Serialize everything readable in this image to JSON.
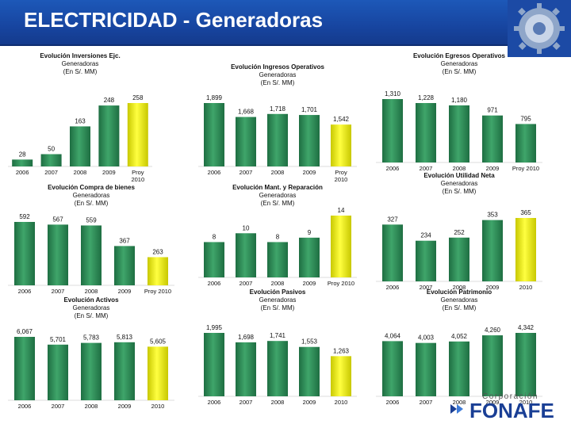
{
  "header": {
    "title": "ELECTRICIDAD - Generadoras"
  },
  "colors": {
    "bar_green": "#2e8b57",
    "bar_yellow": "#f2f200",
    "header_blue": "#1b4fb0"
  },
  "footer": {
    "corp_label": "Corporación",
    "brand": "FONAFE"
  },
  "chart_data": [
    {
      "id": "inversiones",
      "type": "bar",
      "title": "Evolución Inversiones Ejc.",
      "subtitle": "Generadoras",
      "unit": "(En S/. MM)",
      "categories": [
        "2006",
        "2007",
        "2008",
        "2009",
        "Proy\n2010"
      ],
      "values": [
        28,
        50,
        163,
        248,
        258
      ],
      "labels": [
        "28",
        "50",
        "163",
        "248",
        "258"
      ],
      "highlight": [
        false,
        false,
        false,
        false,
        true
      ]
    },
    {
      "id": "ingresos",
      "type": "bar",
      "title": "Evolución Ingresos Operativos",
      "subtitle": "Generadoras",
      "unit": "(En S/. MM)",
      "categories": [
        "2006",
        "2007",
        "2008",
        "2009",
        "Proy\n2010"
      ],
      "values": [
        1899,
        1668,
        1718,
        1701,
        1542
      ],
      "labels": [
        "1,899",
        "1,668",
        "1,718",
        "1,701",
        "1,542"
      ],
      "highlight": [
        false,
        false,
        false,
        false,
        true
      ]
    },
    {
      "id": "egresos",
      "type": "bar",
      "title": "Evolución Egresos Operativos",
      "subtitle": "Generadoras",
      "unit": "(En S/. MM)",
      "categories": [
        "2006",
        "2007",
        "2008",
        "2009",
        "Proy 2010"
      ],
      "values": [
        1310,
        1228,
        1180,
        971,
        795
      ],
      "labels": [
        "1,310",
        "1,228",
        "1,180",
        "971",
        "795"
      ],
      "highlight": [
        false,
        false,
        false,
        false,
        false
      ]
    },
    {
      "id": "compra",
      "type": "bar",
      "title": "Evolución Compra de bienes",
      "subtitle": "Generadoras",
      "unit": "(En S/. MM)",
      "categories": [
        "2006",
        "2007",
        "2008",
        "2009",
        "Proy 2010"
      ],
      "values": [
        592,
        567,
        559,
        367,
        263
      ],
      "labels": [
        "592",
        "567",
        "559",
        "367",
        "263"
      ],
      "highlight": [
        false,
        false,
        false,
        false,
        true
      ]
    },
    {
      "id": "mant",
      "type": "bar",
      "title": "Evolución Mant. y Reparación",
      "subtitle": "Generadoras",
      "unit": "(En S/. MM)",
      "categories": [
        "2006",
        "2007",
        "2008",
        "2009",
        "Proy 2010"
      ],
      "values": [
        8,
        10,
        8,
        9,
        14
      ],
      "labels": [
        "8",
        "10",
        "8",
        "9",
        "14"
      ],
      "highlight": [
        false,
        false,
        false,
        false,
        true
      ]
    },
    {
      "id": "utilidad",
      "type": "bar",
      "title": "Evolución Utilidad Neta",
      "subtitle": "Generadoras",
      "unit": "(En S/. MM)",
      "categories": [
        "2006",
        "2007",
        "2008",
        "2009",
        "2010"
      ],
      "values": [
        327,
        234,
        252,
        353,
        365
      ],
      "labels": [
        "327",
        "234",
        "252",
        "353",
        "365"
      ],
      "highlight": [
        false,
        false,
        false,
        false,
        true
      ]
    },
    {
      "id": "activos",
      "type": "bar",
      "title": "Evolución Activos",
      "subtitle": "Generadoras",
      "unit": "(En S/. MM)",
      "categories": [
        "2006",
        "2007",
        "2008",
        "2009",
        "2010"
      ],
      "values": [
        6067,
        5701,
        5783,
        5813,
        5605
      ],
      "labels": [
        "6,067",
        "5,701",
        "5,783",
        "5,813",
        "5,605"
      ],
      "highlight": [
        false,
        false,
        false,
        false,
        true
      ]
    },
    {
      "id": "pasivos",
      "type": "bar",
      "title": "Evolución Pasivos",
      "subtitle": "Generadoras",
      "unit": "(En S/. MM)",
      "categories": [
        "2006",
        "2007",
        "2008",
        "2009",
        "2010"
      ],
      "values": [
        1995,
        1698,
        1741,
        1553,
        1263
      ],
      "labels": [
        "1,995",
        "1,698",
        "1,741",
        "1,553",
        "1,263"
      ],
      "highlight": [
        false,
        false,
        false,
        false,
        true
      ]
    },
    {
      "id": "patrimonio",
      "type": "bar",
      "title": "Evolución Patrimonio",
      "subtitle": "Generadoras",
      "unit": "(En S/. MM)",
      "categories": [
        "2006",
        "2007",
        "2008",
        "2009",
        "2010"
      ],
      "values": [
        4064,
        4003,
        4052,
        4260,
        4342
      ],
      "labels": [
        "4,064",
        "4,003",
        "4,052",
        "4,260",
        "4,342"
      ],
      "highlight": [
        false,
        false,
        false,
        false,
        false
      ]
    }
  ]
}
